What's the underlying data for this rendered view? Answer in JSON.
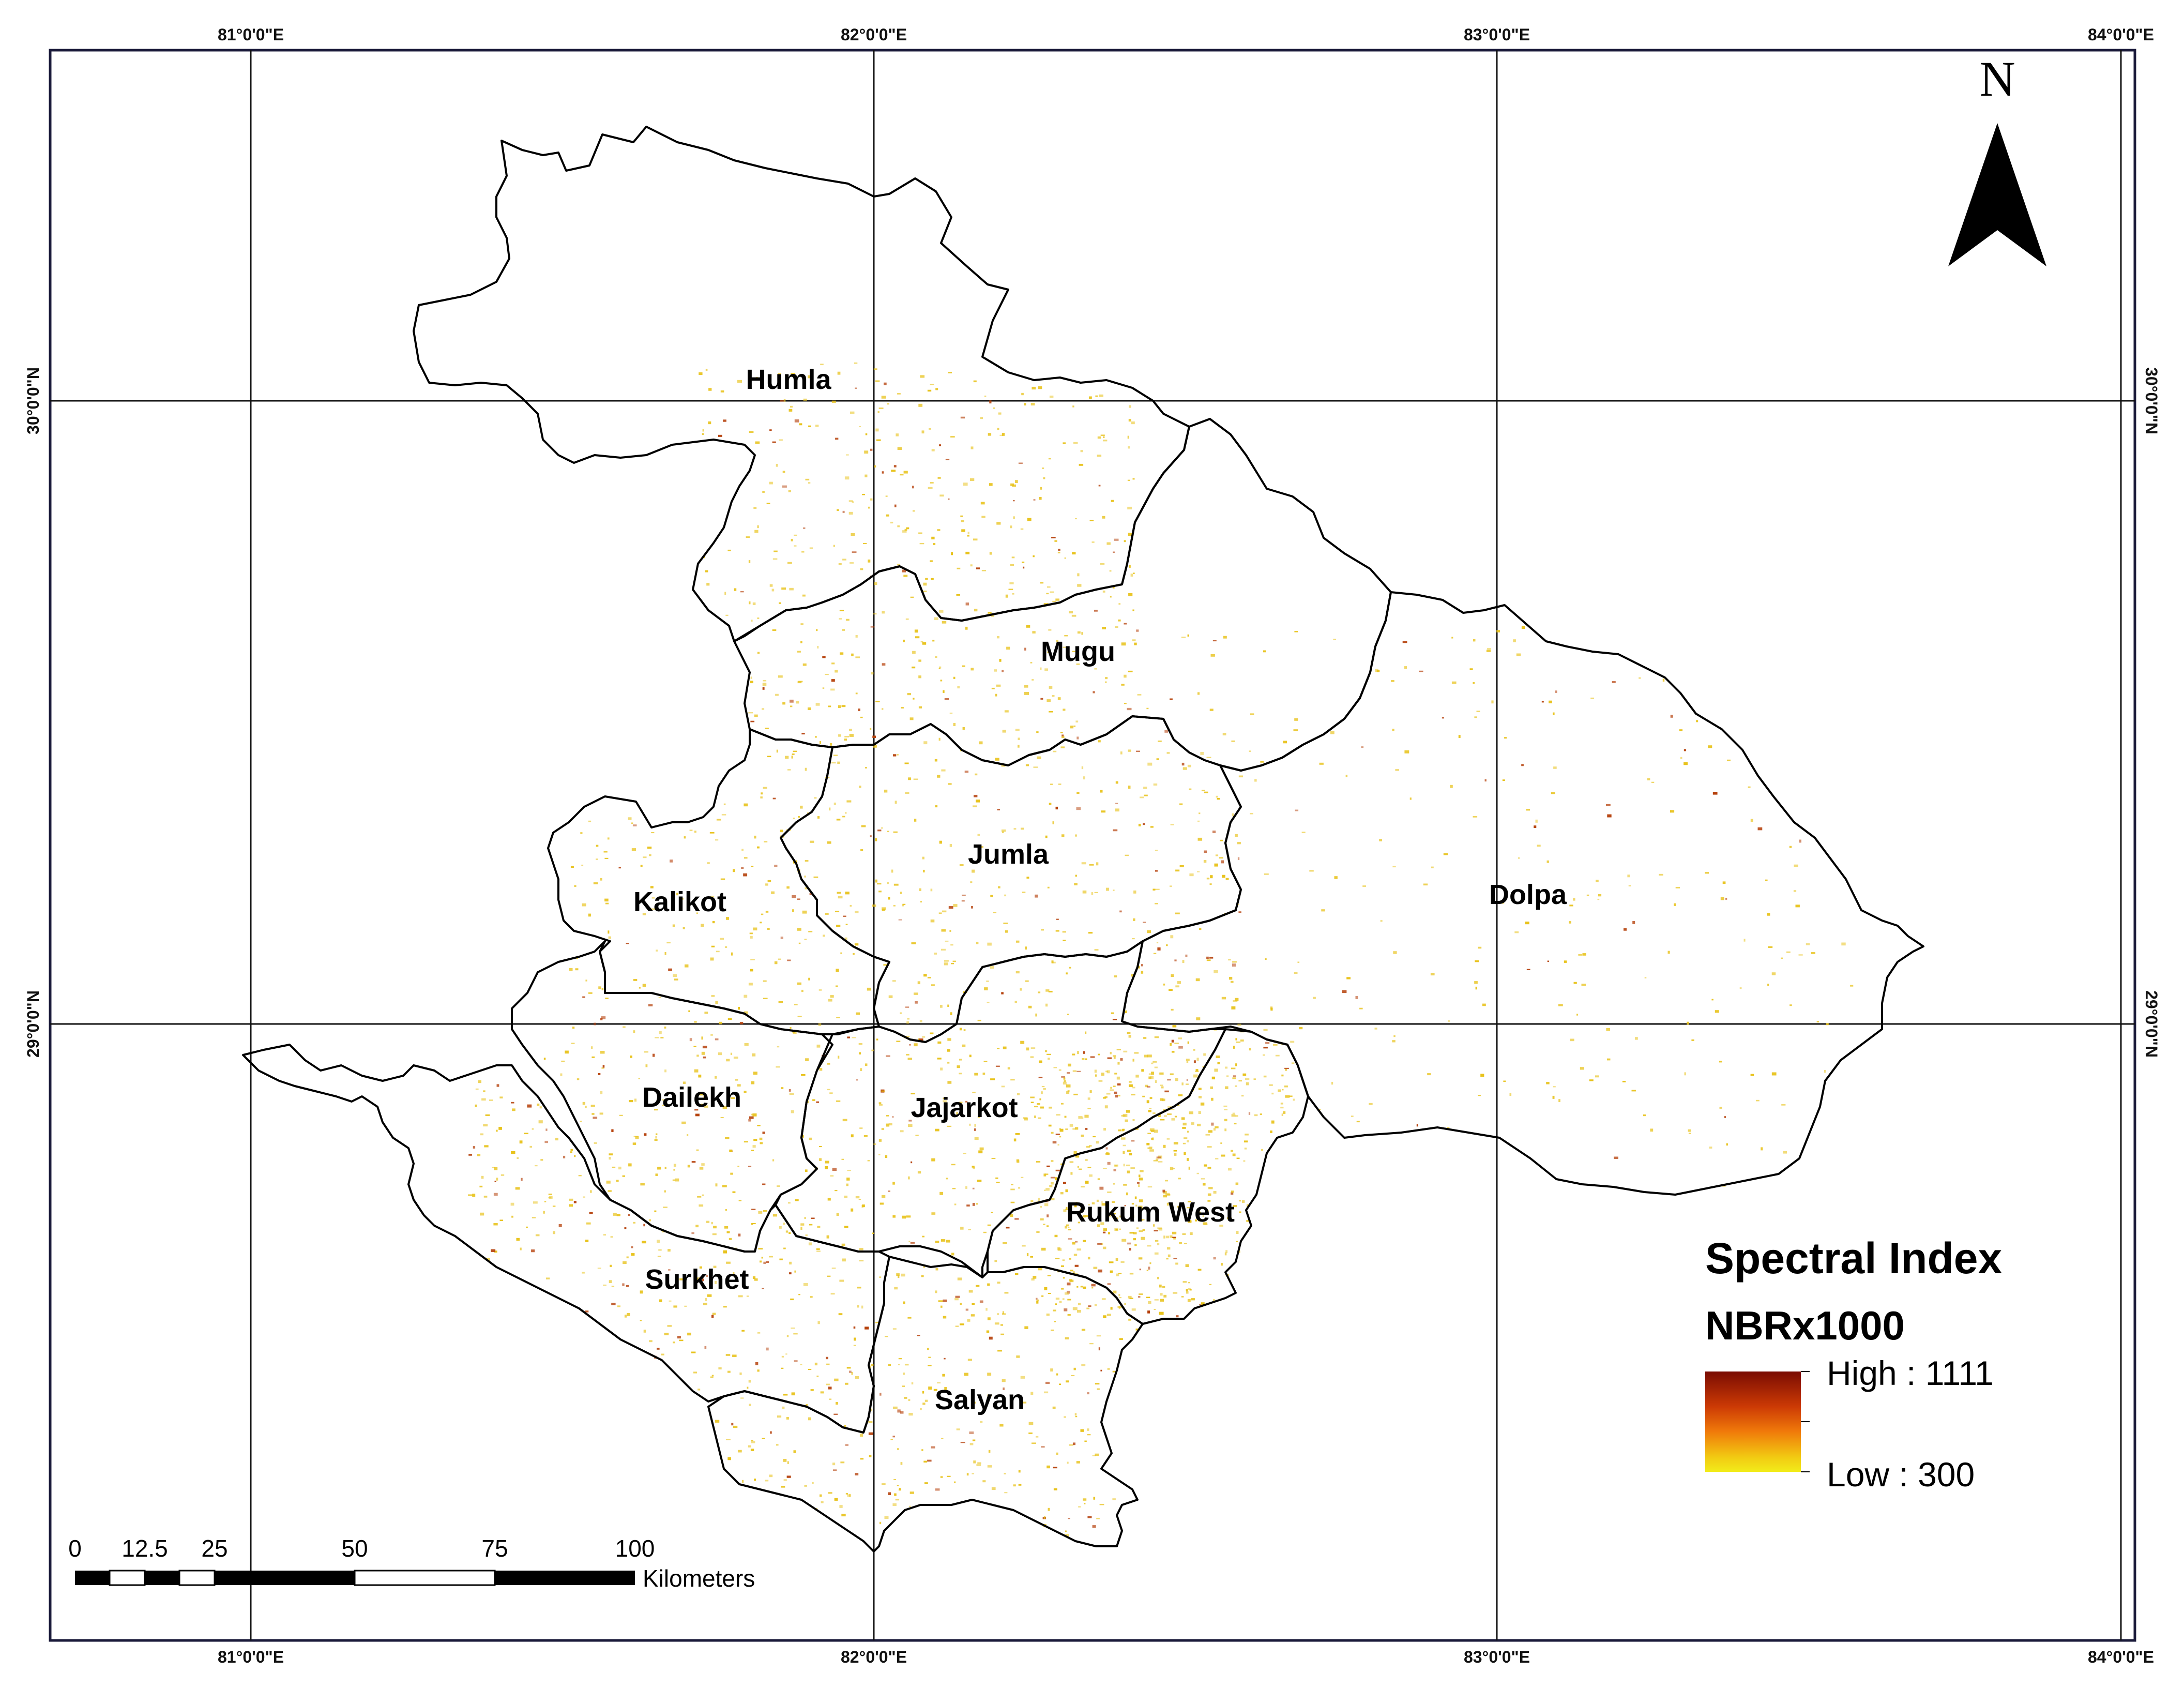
{
  "map": {
    "graticule": {
      "longitudes": [
        "81°0'0\"E",
        "82°0'0\"E",
        "83°0'0\"E",
        "84°0'0\"E"
      ],
      "latitudes": [
        "30°0'0\"N",
        "29°0'0\"N"
      ]
    },
    "districts": [
      {
        "name": "Humla"
      },
      {
        "name": "Mugu"
      },
      {
        "name": "Jumla"
      },
      {
        "name": "Kalikot"
      },
      {
        "name": "Dolpa"
      },
      {
        "name": "Dailekh"
      },
      {
        "name": "Jajarkot"
      },
      {
        "name": "Rukum West"
      },
      {
        "name": "Surkhet"
      },
      {
        "name": "Salyan"
      }
    ],
    "north_arrow": {
      "label": "N",
      "icon": "north-arrow-icon"
    },
    "legend": {
      "title": "Spectral Index",
      "subtitle": "NBRx1000",
      "high_label": "High : 1111",
      "low_label": "Low : 300",
      "high_value": 1111,
      "low_value": 300,
      "gradient_colors": [
        "#7a0c02",
        "#cc3a05",
        "#f07a0a",
        "#f2c912",
        "#f2ec1a"
      ]
    },
    "scale_bar": {
      "labels": [
        "0",
        "12.5",
        "25",
        "50",
        "75",
        "100"
      ],
      "unit": "Kilometers"
    },
    "colors": {
      "boundary": "#000000",
      "speckle_light": "#e8c21a",
      "speckle_dark": "#b5400a"
    }
  }
}
